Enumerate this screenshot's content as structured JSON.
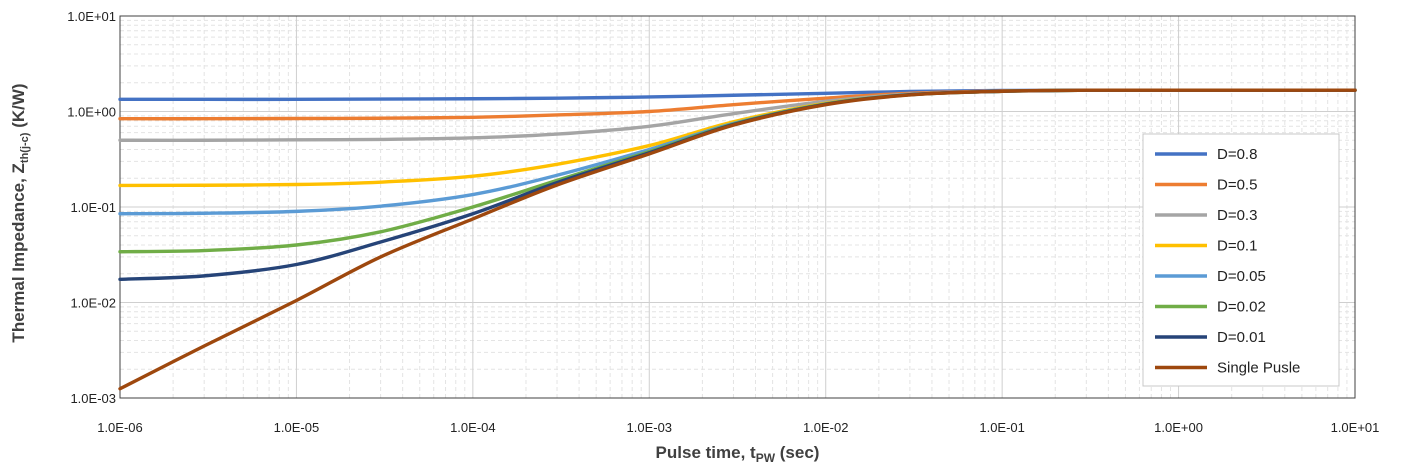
{
  "chart_data": {
    "type": "line",
    "xscale": "log",
    "yscale": "log",
    "xlim": [
      1e-06,
      10
    ],
    "ylim": [
      0.001,
      10
    ],
    "x_ticks": [
      1e-06,
      1e-05,
      0.0001,
      0.001,
      0.01,
      0.1,
      1,
      10
    ],
    "x_tick_labels": [
      "1.0E-06",
      "1.0E-05",
      "1.0E-04",
      "1.0E-03",
      "1.0E-02",
      "1.0E-01",
      "1.0E+00",
      "1.0E+01"
    ],
    "y_ticks": [
      0.001,
      0.01,
      0.1,
      1,
      10
    ],
    "y_tick_labels": [
      "1.0E-03",
      "1.0E-02",
      "1.0E-01",
      "1.0E+00",
      "1.0E+01"
    ],
    "xlabel": {
      "main": "Pulse time, t",
      "sub": "PW",
      "tail": " (sec)"
    },
    "ylabel": {
      "main": "Thermal Impedance, Z",
      "sub": "th(j-c)",
      "tail": " (K/W)"
    },
    "grid": {
      "major": true,
      "minor": true
    },
    "legend_position": "right",
    "x": [
      1e-06,
      3e-06,
      1e-05,
      3e-05,
      0.0001,
      0.0003,
      0.001,
      0.003,
      0.01,
      0.03,
      0.1,
      0.3,
      1,
      3,
      10
    ],
    "series": [
      {
        "name": "D=0.8",
        "color": "#4472C4",
        "values": [
          1.34,
          1.34,
          1.34,
          1.35,
          1.36,
          1.38,
          1.42,
          1.48,
          1.55,
          1.62,
          1.66,
          1.67,
          1.67,
          1.67,
          1.67
        ]
      },
      {
        "name": "D=0.5",
        "color": "#ED7D31",
        "values": [
          0.84,
          0.84,
          0.845,
          0.85,
          0.87,
          0.92,
          1.0,
          1.18,
          1.38,
          1.55,
          1.64,
          1.67,
          1.67,
          1.67,
          1.67
        ]
      },
      {
        "name": "D=0.3",
        "color": "#A5A5A5",
        "values": [
          0.5,
          0.5,
          0.505,
          0.51,
          0.53,
          0.58,
          0.7,
          0.95,
          1.28,
          1.52,
          1.63,
          1.67,
          1.67,
          1.67,
          1.67
        ]
      },
      {
        "name": "D=0.1",
        "color": "#FFC000",
        "values": [
          0.168,
          0.169,
          0.172,
          0.182,
          0.21,
          0.28,
          0.44,
          0.78,
          1.22,
          1.5,
          1.63,
          1.67,
          1.67,
          1.67,
          1.67
        ]
      },
      {
        "name": "D=0.05",
        "color": "#5B9BD5",
        "values": [
          0.085,
          0.086,
          0.09,
          0.102,
          0.135,
          0.215,
          0.4,
          0.75,
          1.2,
          1.5,
          1.63,
          1.67,
          1.67,
          1.67,
          1.67
        ]
      },
      {
        "name": "D=0.02",
        "color": "#70AD47",
        "values": [
          0.034,
          0.035,
          0.04,
          0.055,
          0.1,
          0.19,
          0.38,
          0.74,
          1.2,
          1.5,
          1.63,
          1.67,
          1.67,
          1.67,
          1.67
        ]
      },
      {
        "name": "D=0.01",
        "color": "#264478",
        "values": [
          0.0175,
          0.019,
          0.025,
          0.043,
          0.085,
          0.18,
          0.37,
          0.73,
          1.19,
          1.5,
          1.63,
          1.67,
          1.67,
          1.67,
          1.67
        ]
      },
      {
        "name": "Single Pusle",
        "color": "#9E480E",
        "values": [
          0.00125,
          0.0035,
          0.0105,
          0.03,
          0.075,
          0.17,
          0.36,
          0.72,
          1.18,
          1.49,
          1.63,
          1.67,
          1.67,
          1.67,
          1.67
        ]
      }
    ]
  }
}
